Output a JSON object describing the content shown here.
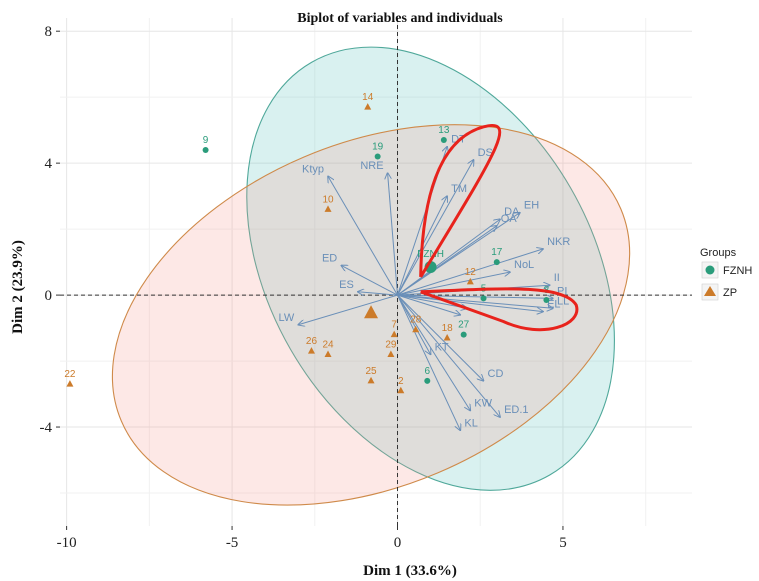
{
  "chart_data": {
    "type": "scatter",
    "title": "Biplot of variables and individuals",
    "xlabel": "Dim 1 (33.6%)",
    "ylabel": "Dim 2 (23.9%)",
    "xlim": [
      -10.2,
      8.9
    ],
    "ylim": [
      -7.0,
      8.4
    ],
    "xticks": [
      -10,
      -5,
      0,
      5
    ],
    "yticks": [
      -4,
      0,
      4,
      8
    ],
    "grid": true,
    "legend": {
      "title": "Groups",
      "position": "right",
      "entries": [
        "FZNH",
        "ZP"
      ]
    },
    "colors": {
      "FZNH": "#2a9c7b",
      "ZP": "#cc7b2a",
      "vector": "#6a8fb8",
      "highlight": "#e8231c"
    },
    "groups": [
      {
        "name": "FZNH",
        "marker": "circle",
        "ellipse": {
          "center": [
            1.0,
            0.8
          ],
          "semi_major": 7.2,
          "semi_minor": 4.9,
          "angle_deg": -60
        },
        "mean": [
          1.0,
          0.85
        ],
        "mean_label": "FZNH"
      },
      {
        "name": "ZP",
        "marker": "triangle",
        "ellipse": {
          "center": [
            -0.8,
            -0.6
          ],
          "semi_major": 8.2,
          "semi_minor": 5.2,
          "angle_deg": 23
        },
        "mean": [
          -0.8,
          -0.55
        ],
        "mean_label": ""
      }
    ],
    "individuals": [
      {
        "label": "9",
        "group": "FZNH",
        "x": -5.8,
        "y": 4.4
      },
      {
        "label": "19",
        "group": "FZNH",
        "x": -0.6,
        "y": 4.2
      },
      {
        "label": "13",
        "group": "FZNH",
        "x": 1.4,
        "y": 4.7
      },
      {
        "label": "17",
        "group": "FZNH",
        "x": 3.0,
        "y": 1.0
      },
      {
        "label": "5",
        "group": "FZNH",
        "x": 2.6,
        "y": -0.1
      },
      {
        "label": "27",
        "group": "FZNH",
        "x": 2.0,
        "y": -1.2
      },
      {
        "label": "6",
        "group": "FZNH",
        "x": 0.9,
        "y": -2.6
      },
      {
        "label": "8",
        "group": "FZNH",
        "x": 4.5,
        "y": -0.15
      },
      {
        "label": "14",
        "group": "ZP",
        "x": -0.9,
        "y": 5.7
      },
      {
        "label": "10",
        "group": "ZP",
        "x": -2.1,
        "y": 2.6
      },
      {
        "label": "12",
        "group": "ZP",
        "x": 2.2,
        "y": 0.4
      },
      {
        "label": "22",
        "group": "ZP",
        "x": -9.9,
        "y": -2.7
      },
      {
        "label": "26",
        "group": "ZP",
        "x": -2.6,
        "y": -1.7
      },
      {
        "label": "24",
        "group": "ZP",
        "x": -2.1,
        "y": -1.8
      },
      {
        "label": "25",
        "group": "ZP",
        "x": -0.8,
        "y": -2.6
      },
      {
        "label": "29",
        "group": "ZP",
        "x": -0.2,
        "y": -1.8
      },
      {
        "label": "2",
        "group": "ZP",
        "x": 0.1,
        "y": -2.9
      },
      {
        "label": "18",
        "group": "ZP",
        "x": 1.5,
        "y": -1.3
      },
      {
        "label": "28",
        "group": "ZP",
        "x": 0.55,
        "y": -1.05
      },
      {
        "label": "7",
        "group": "ZP",
        "x": -0.1,
        "y": -1.2
      }
    ],
    "variables": [
      {
        "label": "DT",
        "x": 1.5,
        "y": 4.5
      },
      {
        "label": "DS",
        "x": 2.3,
        "y": 4.1
      },
      {
        "label": "TM",
        "x": 1.5,
        "y": 3.0
      },
      {
        "label": "NRE",
        "x": -0.3,
        "y": 3.7
      },
      {
        "label": "Ktyp",
        "x": -2.1,
        "y": 3.6
      },
      {
        "label": "EH",
        "x": 3.7,
        "y": 2.5
      },
      {
        "label": "DA",
        "x": 3.1,
        "y": 2.3
      },
      {
        "label": "OA",
        "x": 3.0,
        "y": 2.1
      },
      {
        "label": "NKR",
        "x": 4.4,
        "y": 1.4
      },
      {
        "label": "NoL",
        "x": 3.4,
        "y": 0.7
      },
      {
        "label": "ED",
        "x": -1.7,
        "y": 0.9
      },
      {
        "label": "ES",
        "x": -1.2,
        "y": 0.1
      },
      {
        "label": "LW",
        "x": -3.0,
        "y": -0.9
      },
      {
        "label": "II",
        "x": 4.6,
        "y": 0.3
      },
      {
        "label": "PI",
        "x": 4.7,
        "y": -0.1
      },
      {
        "label": "LL",
        "x": 4.7,
        "y": -0.4
      },
      {
        "label": "EL",
        "x": 4.4,
        "y": -0.5
      },
      {
        "label": "KT",
        "x": 1.0,
        "y": -1.8
      },
      {
        "label": "CD",
        "x": 2.6,
        "y": -2.6
      },
      {
        "label": "ED.1",
        "x": 3.1,
        "y": -3.7
      },
      {
        "label": "KW",
        "x": 2.2,
        "y": -3.5
      },
      {
        "label": "KL",
        "x": 1.9,
        "y": -4.1
      },
      {
        "label": "",
        "x": 1.9,
        "y": -0.6
      },
      {
        "label": "",
        "x": 2.1,
        "y": -0.4
      }
    ],
    "highlights": [
      {
        "name": "upper",
        "anchor": [
          0.7,
          0.55
        ],
        "pts": [
          [
            0.75,
            3.5
          ],
          [
            1.5,
            4.8
          ],
          [
            2.6,
            5.1
          ],
          [
            2.9,
            4.2
          ],
          [
            0.9,
            0.55
          ]
        ]
      },
      {
        "name": "right",
        "anchor": [
          0.7,
          0.1
        ],
        "pts": [
          [
            3.0,
            0.2
          ],
          [
            5.0,
            0.35
          ],
          [
            5.4,
            -0.3
          ],
          [
            4.4,
            -1.35
          ],
          [
            3.2,
            -0.8
          ]
        ]
      }
    ]
  }
}
